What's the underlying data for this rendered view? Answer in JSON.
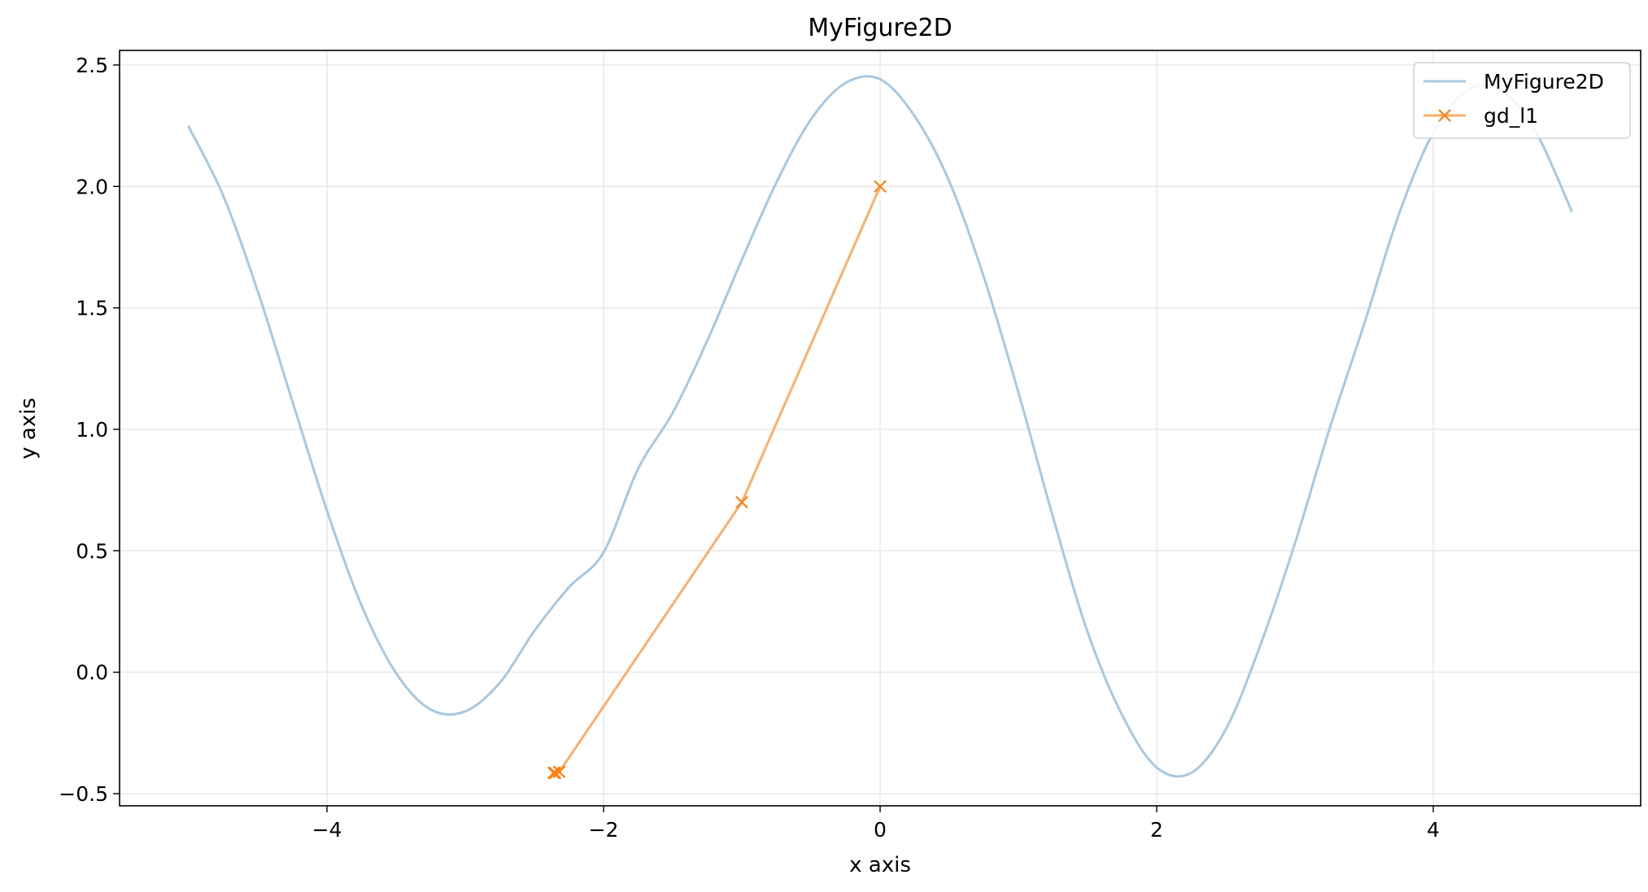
{
  "chart_data": {
    "type": "line",
    "title": "MyFigure2D",
    "xlabel": "x axis",
    "ylabel": "y axis",
    "xlim": [
      -5.5,
      5.5
    ],
    "ylim": [
      -0.55,
      2.56
    ],
    "grid": true,
    "legend_position": "top-right",
    "x_ticks": [
      {
        "value": -4,
        "label": "−4"
      },
      {
        "value": -2,
        "label": "−2"
      },
      {
        "value": 0,
        "label": "0"
      },
      {
        "value": 2,
        "label": "2"
      },
      {
        "value": 4,
        "label": "4"
      }
    ],
    "y_ticks": [
      {
        "value": -0.5,
        "label": "−0.5"
      },
      {
        "value": 0.0,
        "label": "0.0"
      },
      {
        "value": 0.5,
        "label": "0.5"
      },
      {
        "value": 1.0,
        "label": "1.0"
      },
      {
        "value": 1.5,
        "label": "1.5"
      },
      {
        "value": 2.0,
        "label": "2.0"
      },
      {
        "value": 2.5,
        "label": "2.5"
      }
    ],
    "series": [
      {
        "name": "MyFigure2D",
        "color": "#a6c8e1",
        "marker": "none",
        "x": [
          -5.0,
          -4.75,
          -4.5,
          -4.25,
          -4.0,
          -3.75,
          -3.5,
          -3.25,
          -3.0,
          -2.75,
          -2.5,
          -2.25,
          -2.0,
          -1.75,
          -1.5,
          -1.25,
          -1.0,
          -0.75,
          -0.5,
          -0.25,
          0.0,
          0.25,
          0.5,
          0.75,
          1.0,
          1.25,
          1.5,
          1.75,
          2.0,
          2.25,
          2.5,
          2.75,
          3.0,
          3.25,
          3.5,
          3.75,
          4.0,
          4.25,
          4.5,
          4.75,
          5.0
        ],
        "y": [
          2.246,
          1.961,
          1.567,
          1.115,
          0.665,
          0.275,
          -0.004,
          -0.154,
          -0.161,
          -0.043,
          0.17,
          0.35,
          0.493,
          0.838,
          1.068,
          1.365,
          1.698,
          2.016,
          2.276,
          2.426,
          2.441,
          2.289,
          2.021,
          1.627,
          1.152,
          0.639,
          0.166,
          -0.176,
          -0.392,
          -0.414,
          -0.235,
          0.112,
          0.531,
          1.002,
          1.433,
          1.883,
          2.222,
          2.397,
          2.392,
          2.215,
          1.9
        ]
      },
      {
        "name": "gd_l1",
        "color": "#fdae6b",
        "marker_color": "#ff7f0e",
        "marker": "x",
        "x": [
          0.0,
          -1.0,
          -2.32,
          -2.35,
          -2.36,
          -2.36
        ],
        "y": [
          2.0,
          0.7,
          -0.41,
          -0.415,
          -0.414,
          -0.414
        ]
      }
    ]
  }
}
